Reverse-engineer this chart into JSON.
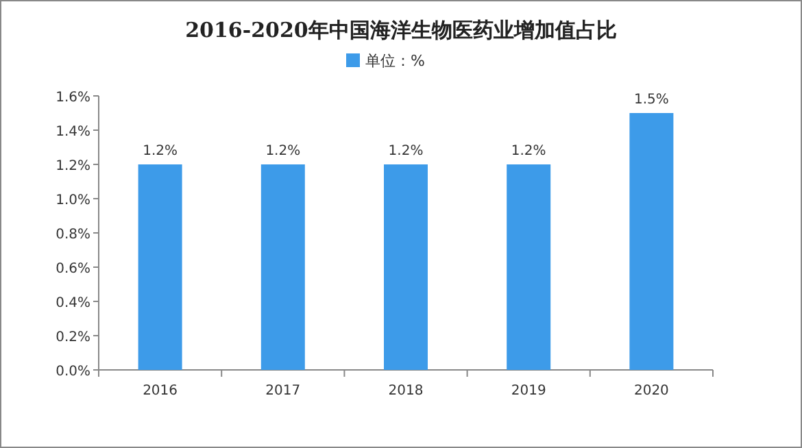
{
  "chart_data": {
    "type": "bar",
    "title": "2016-2020年中国海洋生物医药业增加值占比",
    "categories": [
      "2016",
      "2017",
      "2018",
      "2019",
      "2020"
    ],
    "series": [
      {
        "name": "单位：%",
        "color": "#3d9be9",
        "values": [
          1.2,
          1.2,
          1.2,
          1.2,
          1.5
        ],
        "value_labels": [
          "1.2%",
          "1.2%",
          "1.2%",
          "1.2%",
          "1.5%"
        ]
      }
    ],
    "ylim": [
      0,
      1.6
    ],
    "yticks": [
      {
        "value": 0,
        "label": "0.0%"
      },
      {
        "value": 0.2,
        "label": "0.2%"
      },
      {
        "value": 0.4,
        "label": "0.4%"
      },
      {
        "value": 0.6,
        "label": "0.6%"
      },
      {
        "value": 0.8,
        "label": "0.8%"
      },
      {
        "value": 1.0,
        "label": "1.0%"
      },
      {
        "value": 1.2,
        "label": "1.2%"
      },
      {
        "value": 1.4,
        "label": "1.4%"
      },
      {
        "value": 1.6,
        "label": "1.6%"
      }
    ],
    "grid": false,
    "legend": "top"
  }
}
